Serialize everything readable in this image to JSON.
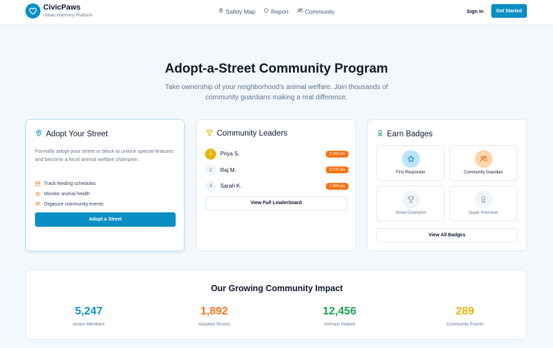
{
  "brand": {
    "name": "CivicPaws",
    "tagline": "Urban Harmony Platform",
    "logo_icon": "heart-icon",
    "accent": "#0a8fc4"
  },
  "nav": {
    "links": [
      {
        "label": "Safety Map",
        "icon": "map-pin-icon"
      },
      {
        "label": "Report",
        "icon": "shield-icon"
      },
      {
        "label": "Community",
        "icon": "users-icon"
      }
    ],
    "sign_in": "Sign In",
    "get_started": "Get Started"
  },
  "hero": {
    "title": "Adopt-a-Street Community Program",
    "subtitle": "Take ownership of your neighborhood's animal welfare. Join thousands of community guardians making a real difference."
  },
  "adopt_card": {
    "title": "Adopt Your Street",
    "icon": "map-pin-icon",
    "description": "Formally adopt your street or block to unlock special features and become a local animal welfare champion.",
    "features": [
      {
        "label": "Track feeding schedules",
        "icon": "calendar-icon"
      },
      {
        "label": "Monitor animal health",
        "icon": "star-icon"
      },
      {
        "label": "Organize community events",
        "icon": "users-icon"
      }
    ],
    "button": "Adopt a Street"
  },
  "leaders_card": {
    "title": "Community Leaders",
    "icon": "trophy-icon",
    "leaders": [
      {
        "rank": "1",
        "name": "Priya S.",
        "points": "2,450 pts"
      },
      {
        "rank": "2",
        "name": "Raj M.",
        "points": "2,120 pts"
      },
      {
        "rank": "3",
        "name": "Sarah K.",
        "points": "1,890 pts"
      }
    ],
    "button": "View Full Leaderboard"
  },
  "badges_card": {
    "title": "Earn Badges",
    "icon": "award-icon",
    "badges": [
      {
        "label": "First Responder",
        "icon": "star-icon",
        "locked": false,
        "color": "#bae6fd"
      },
      {
        "label": "Community Guardian",
        "icon": "users-icon",
        "locked": false,
        "color": "#fed7aa"
      },
      {
        "label": "Street Champion",
        "icon": "trophy-icon",
        "locked": true,
        "color": "#f1f5f9"
      },
      {
        "label": "Super Volunteer",
        "icon": "award-icon",
        "locked": true,
        "color": "#f1f5f9"
      }
    ],
    "button": "View All Badges"
  },
  "impact": {
    "title": "Our Growing Community Impact",
    "stats": [
      {
        "value": "5,247",
        "label": "Active Members",
        "color": "#0a8fc4"
      },
      {
        "value": "1,892",
        "label": "Adopted Streets",
        "color": "#f97316"
      },
      {
        "value": "12,456",
        "label": "Animals Helped",
        "color": "#16a34a"
      },
      {
        "value": "289",
        "label": "Community Events",
        "color": "#eab308"
      }
    ]
  }
}
